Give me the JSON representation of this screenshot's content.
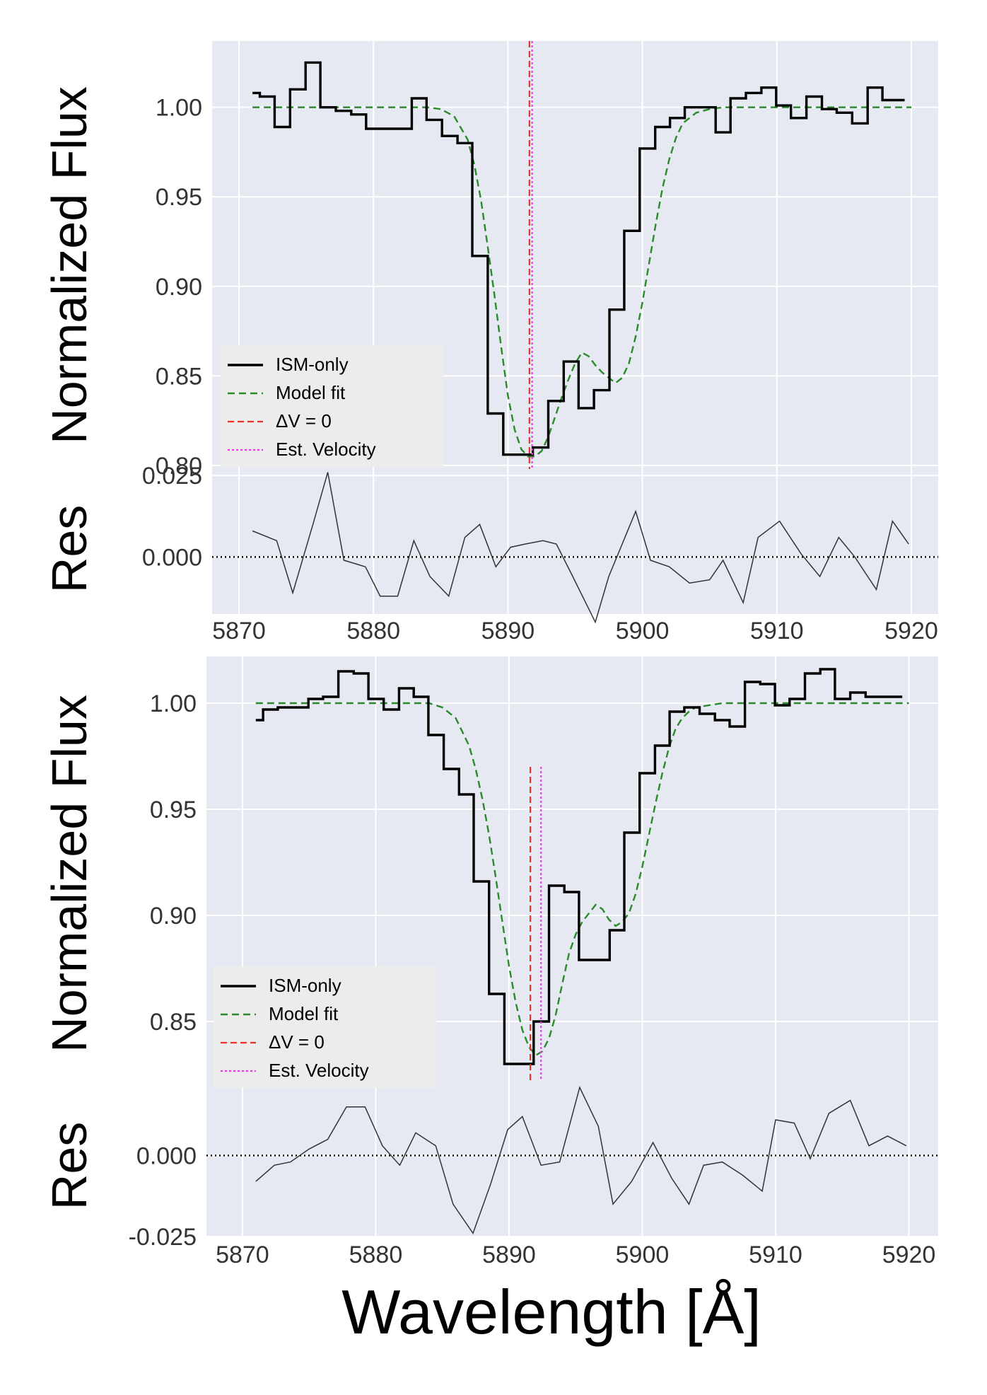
{
  "figure": {
    "xlabel": "Wavelength [Å]"
  },
  "chart_data": [
    {
      "type": "line",
      "panel": "top",
      "ylabel": "Normalized Flux",
      "xlim": [
        5868,
        5922
      ],
      "ylim": [
        0.798,
        1.037
      ],
      "x_ticks": [
        5870,
        5880,
        5890,
        5900,
        5910,
        5920
      ],
      "x_tick_labels": [
        "5870",
        "5880",
        "5890",
        "5900",
        "5910",
        "5920"
      ],
      "y_ticks": [
        0.8,
        0.85,
        0.9,
        0.95,
        1.0
      ],
      "y_tick_labels": [
        "0.80",
        "0.85",
        "0.90",
        "0.95",
        "1.00"
      ],
      "grid": true,
      "legend_position": "lower-left",
      "vlines": {
        "delta_v0": 5891.6,
        "est_velocity": 5891.8
      },
      "series": [
        {
          "name": "ISM-only",
          "style": "steps",
          "color": "#000000",
          "x": [
            5871.0,
            5872.1,
            5873.2,
            5874.4,
            5875.5,
            5876.6,
            5877.8,
            5878.9,
            5880.0,
            5881.2,
            5882.3,
            5883.4,
            5884.5,
            5885.7,
            5886.8,
            5887.9,
            5889.1,
            5890.2,
            5891.3,
            5892.4,
            5893.6,
            5894.7,
            5895.8,
            5897.0,
            5898.1,
            5899.2,
            5900.4,
            5901.5,
            5902.6,
            5903.7,
            5904.9,
            5906.0,
            5907.1,
            5908.3,
            5909.4,
            5910.5,
            5911.6,
            5912.8,
            5913.9,
            5915.0,
            5916.2,
            5917.3,
            5918.4,
            5919.5
          ],
          "y": [
            1.008,
            1.006,
            0.989,
            1.01,
            1.025,
            1.0,
            0.998,
            0.996,
            0.988,
            0.988,
            0.988,
            1.005,
            0.993,
            0.984,
            0.98,
            0.917,
            0.829,
            0.806,
            0.806,
            0.81,
            0.836,
            0.858,
            0.832,
            0.842,
            0.887,
            0.931,
            0.977,
            0.989,
            0.994,
            1.0,
            1.0,
            0.986,
            1.005,
            1.008,
            1.011,
            1.001,
            0.994,
            1.006,
            0.999,
            0.997,
            0.991,
            1.011,
            1.004,
            1.004
          ]
        },
        {
          "name": "Model fit",
          "style": "dashed",
          "color": "#2a8a2a",
          "x": [
            5871,
            5872,
            5874,
            5876,
            5878,
            5880,
            5882,
            5883,
            5884,
            5885,
            5886,
            5887,
            5887.5,
            5888,
            5888.5,
            5889,
            5889.5,
            5890,
            5890.5,
            5891,
            5891.5,
            5892,
            5892.5,
            5893,
            5893.5,
            5894,
            5894.5,
            5895,
            5895.5,
            5896,
            5896.5,
            5897,
            5897.5,
            5898,
            5898.5,
            5899,
            5899.5,
            5900,
            5900.5,
            5901,
            5901.5,
            5902,
            5902.5,
            5903,
            5904,
            5905,
            5906,
            5908,
            5910,
            5912,
            5914,
            5916,
            5918,
            5920
          ],
          "y": [
            1.0,
            1.0,
            1.0,
            1.0,
            1.0,
            1.0,
            1.0,
            1.0,
            1.0,
            0.999,
            0.995,
            0.982,
            0.968,
            0.948,
            0.922,
            0.895,
            0.866,
            0.839,
            0.82,
            0.809,
            0.805,
            0.805,
            0.808,
            0.816,
            0.827,
            0.838,
            0.848,
            0.857,
            0.863,
            0.861,
            0.856,
            0.852,
            0.849,
            0.846,
            0.849,
            0.857,
            0.872,
            0.891,
            0.913,
            0.935,
            0.955,
            0.971,
            0.983,
            0.991,
            0.997,
            0.999,
            1.0,
            1.0,
            1.0,
            1.0,
            1.0,
            1.0,
            1.0,
            1.0
          ]
        }
      ],
      "legend": [
        "ISM-only",
        "Model fit",
        "ΔV = 0",
        "Est. Velocity"
      ],
      "residual": {
        "ylabel": "Res",
        "ylim": [
          -0.0175,
          0.027
        ],
        "y_ticks": [
          0.0,
          0.025
        ],
        "y_tick_labels": [
          "0.000",
          "0.025"
        ],
        "x": [
          5871.0,
          5872.8,
          5874.0,
          5875.5,
          5876.6,
          5877.8,
          5879.4,
          5880.5,
          5881.8,
          5883.0,
          5884.2,
          5885.6,
          5886.8,
          5887.9,
          5889.1,
          5890.2,
          5891.3,
          5892.6,
          5893.6,
          5894.7,
          5896.5,
          5897.5,
          5899.5,
          5900.6,
          5902.0,
          5903.5,
          5905.0,
          5906.0,
          5907.5,
          5908.6,
          5910.2,
          5911.8,
          5913.2,
          5914.6,
          5915.8,
          5917.4,
          5918.6,
          5919.8
        ],
        "y": [
          0.008,
          0.005,
          -0.011,
          0.01,
          0.026,
          -0.001,
          -0.003,
          -0.012,
          -0.012,
          0.005,
          -0.006,
          -0.012,
          0.006,
          0.01,
          -0.003,
          0.003,
          0.004,
          0.005,
          0.004,
          -0.005,
          -0.02,
          -0.006,
          0.014,
          -0.001,
          -0.003,
          -0.008,
          -0.007,
          -0.001,
          -0.014,
          0.006,
          0.011,
          0.001,
          -0.006,
          0.006,
          0.0,
          -0.01,
          0.011,
          0.004
        ]
      }
    },
    {
      "type": "line",
      "panel": "bottom",
      "ylabel": "Normalized Flux",
      "xlim": [
        5867.3,
        5922.2
      ],
      "ylim": [
        0.822,
        1.022
      ],
      "x_ticks": [
        5870,
        5880,
        5890,
        5900,
        5910,
        5920
      ],
      "x_tick_labels": [
        "5870",
        "5880",
        "5890",
        "5900",
        "5910",
        "5920"
      ],
      "y_ticks": [
        0.85,
        0.9,
        0.95,
        1.0
      ],
      "y_tick_labels": [
        "0.85",
        "0.90",
        "0.95",
        "1.00"
      ],
      "grid": true,
      "legend_position": "lower-left",
      "vlines": {
        "delta_v0": 5891.6,
        "est_velocity": 5892.4
      },
      "series": [
        {
          "name": "ISM-only",
          "style": "steps",
          "color": "#000000",
          "x": [
            5871.0,
            5872.1,
            5873.2,
            5874.4,
            5875.5,
            5876.6,
            5877.8,
            5878.9,
            5880.0,
            5881.2,
            5882.3,
            5883.4,
            5884.5,
            5885.7,
            5886.8,
            5887.9,
            5889.1,
            5890.2,
            5891.3,
            5892.4,
            5893.6,
            5894.7,
            5895.8,
            5897.0,
            5898.1,
            5899.2,
            5900.4,
            5901.5,
            5902.6,
            5903.7,
            5904.9,
            5906.0,
            5907.1,
            5908.3,
            5909.4,
            5910.5,
            5911.6,
            5912.8,
            5913.9,
            5915.0,
            5916.2,
            5917.3,
            5918.4,
            5919.5
          ],
          "y": [
            0.992,
            0.997,
            0.998,
            0.998,
            1.002,
            1.003,
            1.015,
            1.014,
            1.002,
            0.997,
            1.007,
            1.003,
            0.985,
            0.969,
            0.957,
            0.916,
            0.863,
            0.83,
            0.83,
            0.85,
            0.914,
            0.911,
            0.879,
            0.879,
            0.893,
            0.939,
            0.967,
            0.98,
            0.996,
            0.998,
            0.995,
            0.992,
            0.989,
            1.01,
            1.009,
            0.999,
            1.002,
            1.014,
            1.016,
            1.002,
            1.005,
            1.003,
            1.003,
            1.003
          ]
        },
        {
          "name": "Model fit",
          "style": "dashed",
          "color": "#2a8a2a",
          "x": [
            5871,
            5874,
            5878,
            5882,
            5884,
            5885,
            5886,
            5887,
            5887.5,
            5888,
            5888.5,
            5889,
            5889.5,
            5890,
            5890.5,
            5891,
            5891.5,
            5892,
            5892.5,
            5893,
            5893.5,
            5894,
            5894.5,
            5895,
            5895.5,
            5896,
            5896.5,
            5897,
            5897.5,
            5898,
            5898.5,
            5899,
            5899.5,
            5900,
            5900.5,
            5901,
            5901.5,
            5902,
            5902.5,
            5903,
            5903.5,
            5904,
            5905,
            5906,
            5908,
            5910,
            5912,
            5914,
            5916,
            5918,
            5920
          ],
          "y": [
            1.0,
            1.0,
            1.0,
            1.0,
            1.0,
            0.998,
            0.993,
            0.98,
            0.969,
            0.955,
            0.938,
            0.918,
            0.897,
            0.876,
            0.859,
            0.846,
            0.838,
            0.834,
            0.836,
            0.842,
            0.853,
            0.868,
            0.882,
            0.891,
            0.897,
            0.901,
            0.905,
            0.903,
            0.898,
            0.895,
            0.897,
            0.901,
            0.91,
            0.923,
            0.938,
            0.953,
            0.967,
            0.979,
            0.988,
            0.993,
            0.996,
            0.998,
            0.999,
            1.0,
            1.0,
            1.0,
            1.0,
            1.0,
            1.0,
            1.0,
            1.0
          ]
        }
      ],
      "legend": [
        "ISM-only",
        "Model fit",
        "ΔV = 0",
        "Est. Velocity"
      ],
      "residual": {
        "ylabel": "Res",
        "ylim": [
          -0.025,
          0.023
        ],
        "y_ticks": [
          0.0,
          -0.025
        ],
        "y_tick_labels": [
          "0.000",
          "-0.025"
        ],
        "x": [
          5871.0,
          5872.4,
          5873.6,
          5875.0,
          5876.4,
          5877.8,
          5879.2,
          5880.5,
          5881.8,
          5883.0,
          5884.5,
          5885.8,
          5887.3,
          5888.6,
          5889.9,
          5891.0,
          5892.4,
          5893.8,
          5895.3,
          5896.7,
          5897.8,
          5899.2,
          5900.8,
          5902.2,
          5903.5,
          5904.6,
          5906.0,
          5907.5,
          5909.0,
          5910.0,
          5911.4,
          5912.6,
          5914.0,
          5915.6,
          5917.0,
          5918.4,
          5919.8
        ],
        "y": [
          -0.008,
          -0.003,
          -0.002,
          0.002,
          0.005,
          0.015,
          0.015,
          0.003,
          -0.003,
          0.007,
          0.003,
          -0.015,
          -0.024,
          -0.009,
          0.008,
          0.012,
          -0.003,
          -0.002,
          0.021,
          0.009,
          -0.015,
          -0.008,
          0.004,
          -0.007,
          -0.015,
          -0.003,
          -0.002,
          -0.006,
          -0.011,
          0.011,
          0.01,
          -0.001,
          0.013,
          0.017,
          0.003,
          0.006,
          0.003
        ]
      }
    }
  ]
}
